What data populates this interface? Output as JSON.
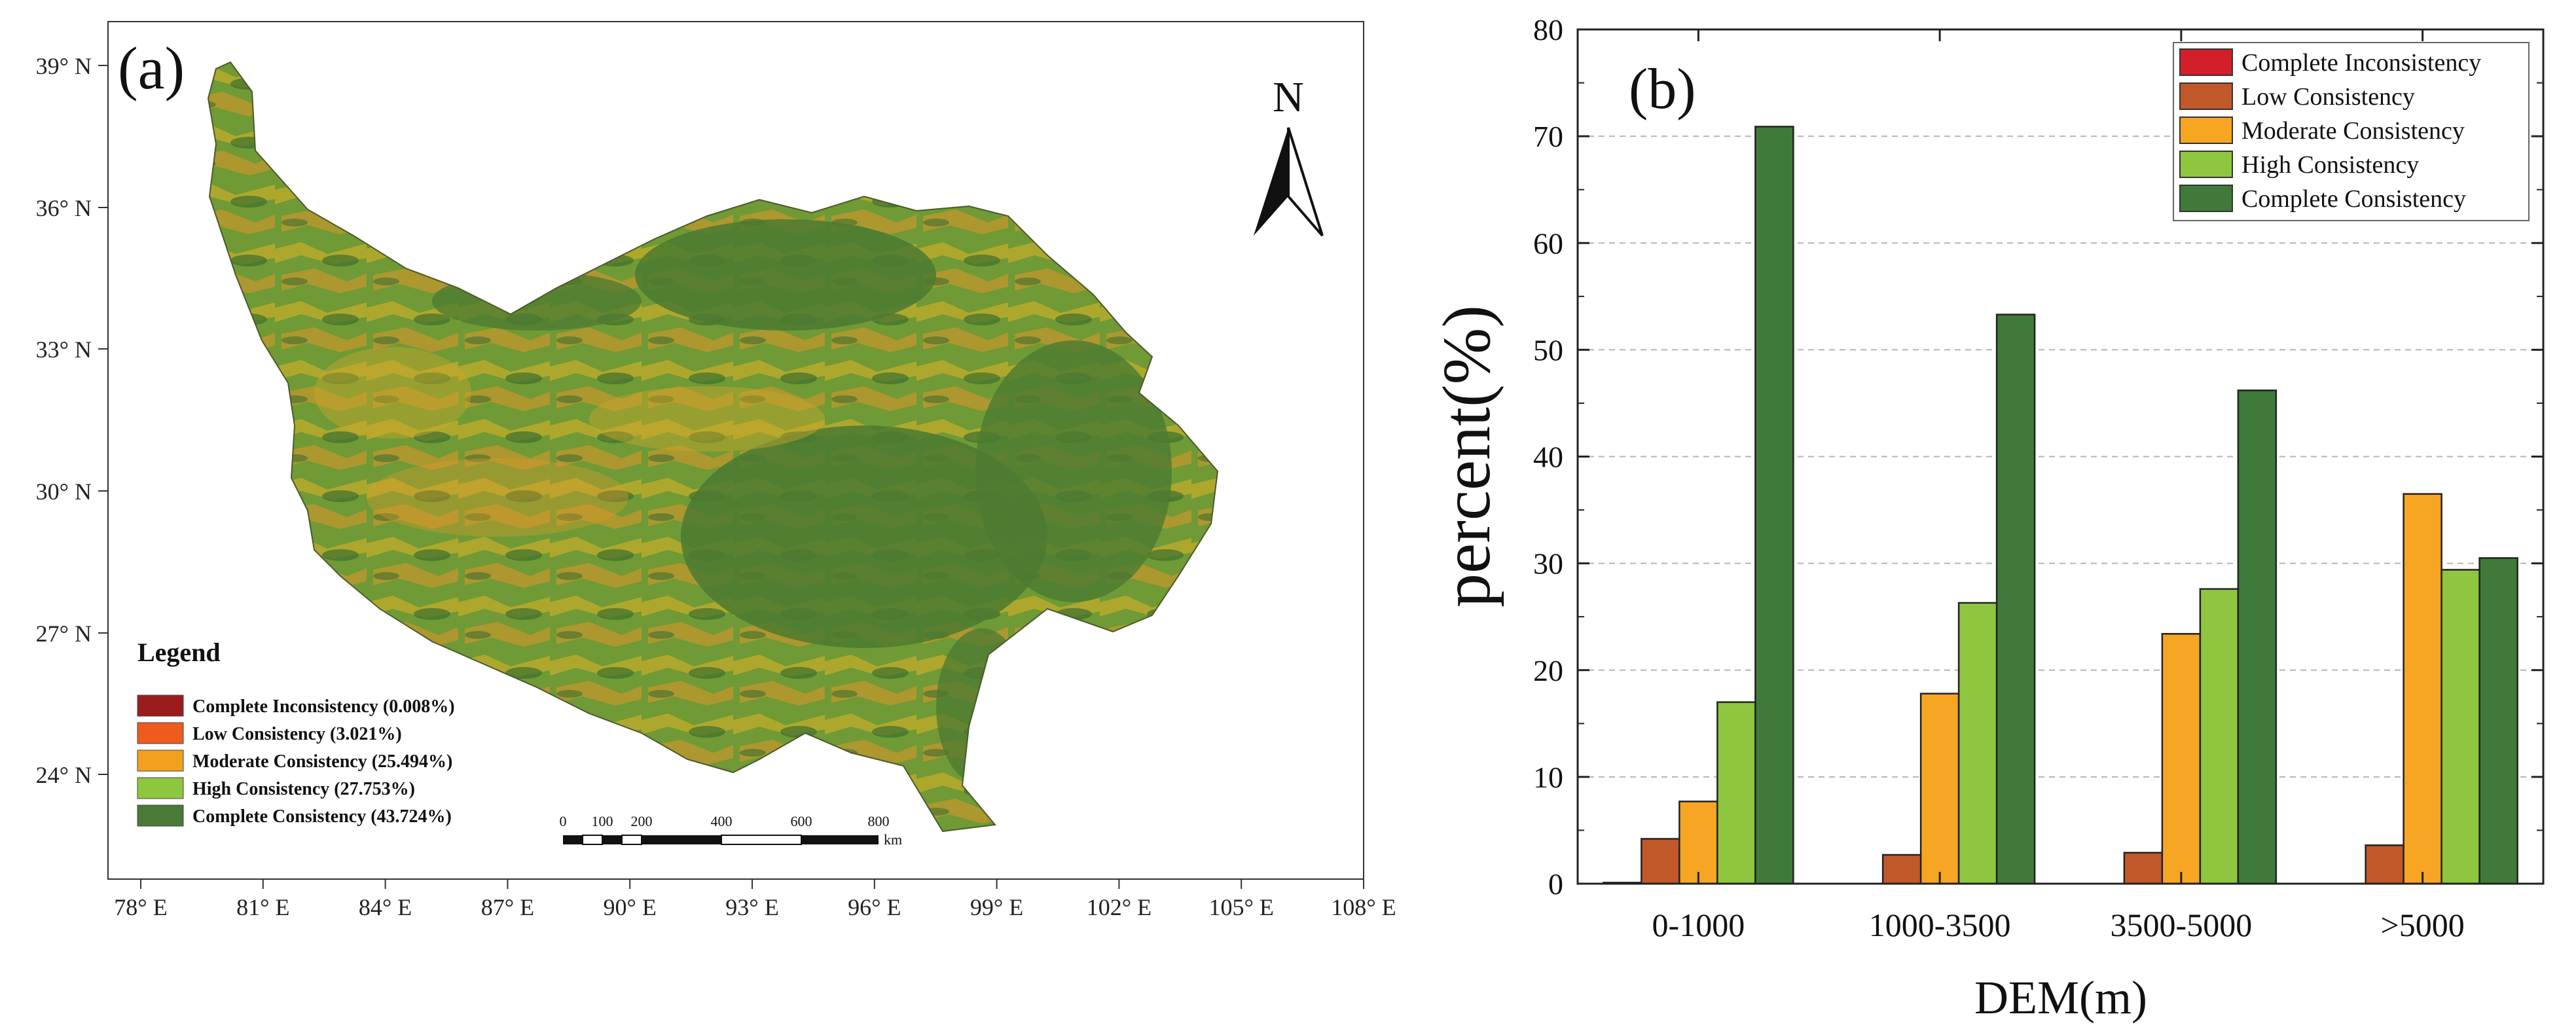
{
  "panel_a": {
    "label": "(a)",
    "north_label": "N",
    "lat_labels": [
      "39° N",
      "36° N",
      "33° N",
      "30° N",
      "27° N",
      "24° N"
    ],
    "lon_labels": [
      "78° E",
      "81° E",
      "84° E",
      "87° E",
      "90° E",
      "93° E",
      "96° E",
      "99° E",
      "102° E",
      "105° E",
      "108° E"
    ],
    "legend_title": "Legend",
    "legend_items": [
      {
        "label": "Complete Inconsistency (0.008%)",
        "color": "#9b1c1c"
      },
      {
        "label": "Low Consistency (3.021%)",
        "color": "#ef5a1e"
      },
      {
        "label": "Moderate Consistency (25.494%)",
        "color": "#f2a01e"
      },
      {
        "label": "High Consistency (27.753%)",
        "color": "#8ec63f"
      },
      {
        "label": "Complete Consistency (43.724%)",
        "color": "#4a7a36"
      }
    ],
    "scale_bar": {
      "ticks": [
        "0",
        "100",
        "200",
        "400",
        "600",
        "800"
      ],
      "unit": "km"
    },
    "colors": {
      "dark_green": "#4f7d34",
      "mid_green": "#7ea83a",
      "yellow": "#b8b230",
      "orange": "#e29a2a"
    }
  },
  "chart_data": {
    "type": "bar",
    "panel_label": "(b)",
    "title": "",
    "xlabel": "DEM(m)",
    "ylabel": "percent(%)",
    "ylim": [
      0,
      80
    ],
    "yticks": [
      "0",
      "10",
      "20",
      "30",
      "40",
      "50",
      "60",
      "70",
      "80"
    ],
    "grid": "horizontal dashed",
    "legend_position": "top-right",
    "categories": [
      "0-1000",
      "1000-3500",
      "3500-5000",
      ">5000"
    ],
    "series": [
      {
        "name": "Complete Inconsistency",
        "color": "#d21f2a",
        "values": [
          0.1,
          0.0,
          0.0,
          0.0
        ]
      },
      {
        "name": "Low Consistency",
        "color": "#c0582a",
        "values": [
          4.2,
          2.7,
          2.9,
          3.6
        ]
      },
      {
        "name": "Moderate Consistency",
        "color": "#f6a623",
        "values": [
          7.7,
          17.8,
          23.4,
          36.5
        ]
      },
      {
        "name": "High Consistency",
        "color": "#8ec63f",
        "values": [
          17.0,
          26.3,
          27.6,
          29.4
        ]
      },
      {
        "name": "Complete Consistency",
        "color": "#3f7a3a",
        "values": [
          70.9,
          53.3,
          46.2,
          30.5
        ]
      }
    ]
  }
}
